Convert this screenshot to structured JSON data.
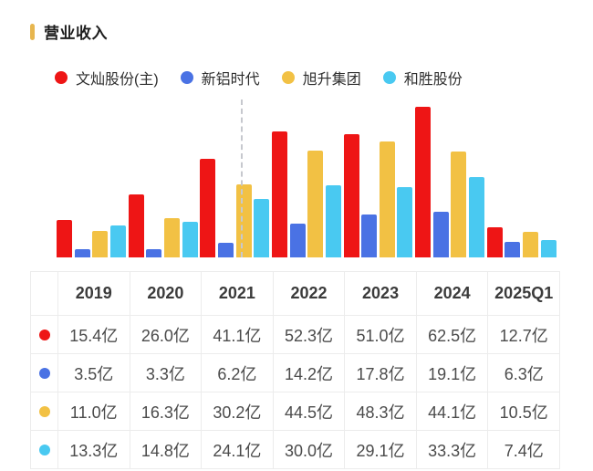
{
  "title": "营业收入",
  "accent_color": "#e7b64f",
  "legend": [
    {
      "name": "文灿股份(主)",
      "color": "#ee1515"
    },
    {
      "name": "新铝时代",
      "color": "#4a72e4"
    },
    {
      "name": "旭升集团",
      "color": "#f2c144"
    },
    {
      "name": "和胜股份",
      "color": "#49c9f1"
    }
  ],
  "chart_data": {
    "type": "bar",
    "title": "营业收入",
    "unit": "亿",
    "categories": [
      "2019",
      "2020",
      "2021",
      "2022",
      "2023",
      "2024",
      "2025Q1"
    ],
    "series": [
      {
        "name": "文灿股份(主)",
        "color": "#ee1515",
        "values": [
          15.4,
          26.0,
          41.1,
          52.3,
          51.0,
          62.5,
          12.7
        ]
      },
      {
        "name": "新铝时代",
        "color": "#4a72e4",
        "values": [
          3.5,
          3.3,
          6.2,
          14.2,
          17.8,
          19.1,
          6.3
        ]
      },
      {
        "name": "旭升集团",
        "color": "#f2c144",
        "values": [
          11.0,
          16.3,
          30.2,
          44.5,
          48.3,
          44.1,
          10.5
        ]
      },
      {
        "name": "和胜股份",
        "color": "#49c9f1",
        "values": [
          13.3,
          14.8,
          24.1,
          30.0,
          29.1,
          33.3,
          7.4
        ]
      }
    ],
    "ylim": [
      0,
      64
    ],
    "grid": false,
    "axes_visible": false,
    "legend_position": "top",
    "annotations": [
      {
        "type": "vertical-dashed-line",
        "color": "#c6c8ce",
        "near_category": "2021"
      }
    ]
  },
  "table": {
    "headers": [
      "",
      "2019",
      "2020",
      "2021",
      "2022",
      "2023",
      "2024",
      "2025Q1"
    ],
    "rows": [
      {
        "series": "文灿股份(主)",
        "dot_color": "#ee1515",
        "cells": [
          "15.4亿",
          "26.0亿",
          "41.1亿",
          "52.3亿",
          "51.0亿",
          "62.5亿",
          "12.7亿"
        ]
      },
      {
        "series": "新铝时代",
        "dot_color": "#4a72e4",
        "cells": [
          "3.5亿",
          "3.3亿",
          "6.2亿",
          "14.2亿",
          "17.8亿",
          "19.1亿",
          "6.3亿"
        ]
      },
      {
        "series": "旭升集团",
        "dot_color": "#f2c144",
        "cells": [
          "11.0亿",
          "16.3亿",
          "30.2亿",
          "44.5亿",
          "48.3亿",
          "44.1亿",
          "10.5亿"
        ]
      },
      {
        "series": "和胜股份",
        "dot_color": "#49c9f1",
        "cells": [
          "13.3亿",
          "14.8亿",
          "24.1亿",
          "30.0亿",
          "29.1亿",
          "33.3亿",
          "7.4亿"
        ]
      }
    ]
  }
}
